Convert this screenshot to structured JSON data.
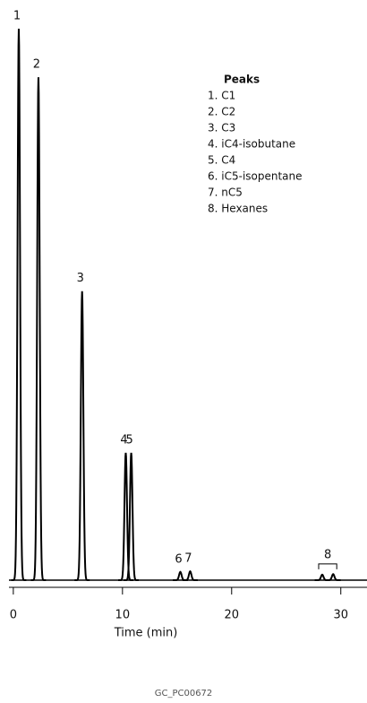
{
  "chart_data": {
    "type": "chromatogram",
    "x": [
      0.5,
      2.3,
      6.3,
      10.3,
      10.8,
      15.3,
      16.2,
      28.3,
      29.3
    ],
    "values": [
      100,
      91.2,
      52.4,
      23.1,
      23.1,
      1.5,
      1.6,
      1.0,
      1.1
    ],
    "labels": [
      "1",
      "2",
      "3",
      "4",
      "5",
      "6",
      "7",
      "8",
      null
    ],
    "color": "#000000",
    "xlim": [
      -0.4,
      32.4
    ],
    "xticks": [
      0,
      10,
      20,
      30
    ],
    "ylim": [
      0,
      100
    ],
    "xlabel": "Time (min)",
    "legend": {
      "title": "Peaks",
      "items": [
        "1. C1",
        "2. C2",
        "3. C3",
        "4. iC4-isobutane",
        "5. C4",
        "6. iC5-isopentane",
        "7. nC5",
        "8. Hexanes"
      ]
    },
    "footer": "GC_PC00672"
  }
}
